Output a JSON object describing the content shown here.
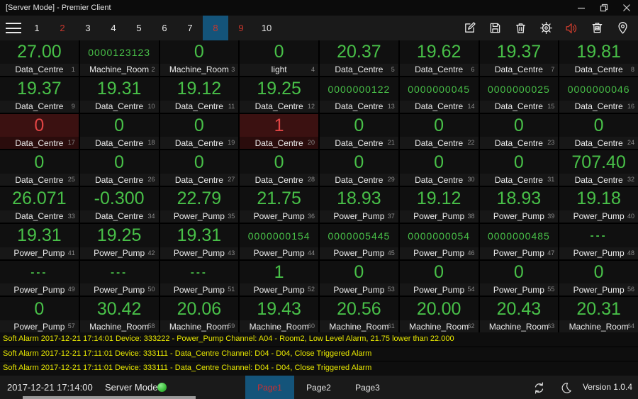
{
  "window": {
    "title": "[Server Mode] - Premier Client",
    "controls": [
      "minimize",
      "restore",
      "close"
    ]
  },
  "colors": {
    "accent_blue": "#14547a",
    "value_green": "#48c048",
    "alert_red": "#c8372d",
    "alarm_cell_bg": "#3b1111",
    "alarm_value_red": "#e04444",
    "alarm_text_yellow": "#e8e800"
  },
  "toolbar": {
    "pages": [
      {
        "label": "1"
      },
      {
        "label": "2",
        "alert": true
      },
      {
        "label": "3"
      },
      {
        "label": "4"
      },
      {
        "label": "5"
      },
      {
        "label": "6"
      },
      {
        "label": "7"
      },
      {
        "label": "8",
        "alert": true,
        "selected": true
      },
      {
        "label": "9",
        "alert": true
      },
      {
        "label": "10"
      }
    ],
    "icons": [
      "edit-icon",
      "save-icon",
      "delete-icon",
      "settings-icon",
      "sound-icon",
      "image-bin-icon",
      "location-icon"
    ]
  },
  "grid": {
    "cells": [
      {
        "index": 1,
        "value": "27.00",
        "label": "Data_Centre",
        "style": "big"
      },
      {
        "index": 2,
        "value": "0000123123",
        "label": "Machine_Room",
        "style": "counter"
      },
      {
        "index": 3,
        "value": "0",
        "label": "Machine_Room",
        "style": "big"
      },
      {
        "index": 4,
        "value": "0",
        "label": "light",
        "style": "big"
      },
      {
        "index": 5,
        "value": "20.37",
        "label": "Data_Centre",
        "style": "big"
      },
      {
        "index": 6,
        "value": "19.62",
        "label": "Data_Centre",
        "style": "big"
      },
      {
        "index": 7,
        "value": "19.37",
        "label": "Data_Centre",
        "style": "big"
      },
      {
        "index": 8,
        "value": "19.81",
        "label": "Data_Centre",
        "style": "big"
      },
      {
        "index": 9,
        "value": "19.37",
        "label": "Data_Centre",
        "style": "big"
      },
      {
        "index": 10,
        "value": "19.31",
        "label": "Data_Centre",
        "style": "big"
      },
      {
        "index": 11,
        "value": "19.12",
        "label": "Data_Centre",
        "style": "big"
      },
      {
        "index": 12,
        "value": "19.25",
        "label": "Data_Centre",
        "style": "big"
      },
      {
        "index": 13,
        "value": "0000000122",
        "label": "Data_Centre",
        "style": "counter"
      },
      {
        "index": 14,
        "value": "0000000045",
        "label": "Data_Centre",
        "style": "counter"
      },
      {
        "index": 15,
        "value": "0000000025",
        "label": "Data_Centre",
        "style": "counter"
      },
      {
        "index": 16,
        "value": "0000000046",
        "label": "Data_Centre",
        "style": "counter"
      },
      {
        "index": 17,
        "value": "0",
        "label": "Data_Centre",
        "style": "big",
        "alarm": true
      },
      {
        "index": 18,
        "value": "0",
        "label": "Data_Centre",
        "style": "big"
      },
      {
        "index": 19,
        "value": "0",
        "label": "Data_Centre",
        "style": "big"
      },
      {
        "index": 20,
        "value": "1",
        "label": "Data_Centre",
        "style": "big",
        "alarm": true
      },
      {
        "index": 21,
        "value": "0",
        "label": "Data_Centre",
        "style": "big"
      },
      {
        "index": 22,
        "value": "0",
        "label": "Data_Centre",
        "style": "big"
      },
      {
        "index": 23,
        "value": "0",
        "label": "Data_Centre",
        "style": "big"
      },
      {
        "index": 24,
        "value": "0",
        "label": "Data_Centre",
        "style": "big"
      },
      {
        "index": 25,
        "value": "0",
        "label": "Data_Centre",
        "style": "big"
      },
      {
        "index": 26,
        "value": "0",
        "label": "Data_Centre",
        "style": "big"
      },
      {
        "index": 27,
        "value": "0",
        "label": "Data_Centre",
        "style": "big"
      },
      {
        "index": 28,
        "value": "0",
        "label": "Data_Centre",
        "style": "big"
      },
      {
        "index": 29,
        "value": "0",
        "label": "Data_Centre",
        "style": "big"
      },
      {
        "index": 30,
        "value": "0",
        "label": "Data_Centre",
        "style": "big"
      },
      {
        "index": 31,
        "value": "0",
        "label": "Data_Centre",
        "style": "big"
      },
      {
        "index": 32,
        "value": "707.40",
        "label": "Data_Centre",
        "style": "big"
      },
      {
        "index": 33,
        "value": "26.071",
        "label": "Data_Centre",
        "style": "big"
      },
      {
        "index": 34,
        "value": "-0.300",
        "label": "Data_Centre",
        "style": "big"
      },
      {
        "index": 35,
        "value": "22.79",
        "label": "Power_Pump",
        "style": "big"
      },
      {
        "index": 36,
        "value": "21.75",
        "label": "Power_Pump",
        "style": "big"
      },
      {
        "index": 37,
        "value": "18.93",
        "label": "Power_Pump",
        "style": "big"
      },
      {
        "index": 38,
        "value": "19.12",
        "label": "Power_Pump",
        "style": "big"
      },
      {
        "index": 39,
        "value": "18.93",
        "label": "Power_Pump",
        "style": "big"
      },
      {
        "index": 40,
        "value": "19.18",
        "label": "Power_Pump",
        "style": "big"
      },
      {
        "index": 41,
        "value": "19.31",
        "label": "Power_Pump",
        "style": "big"
      },
      {
        "index": 42,
        "value": "19.25",
        "label": "Power_Pump",
        "style": "big"
      },
      {
        "index": 43,
        "value": "19.31",
        "label": "Power_Pump",
        "style": "big"
      },
      {
        "index": 44,
        "value": "0000000154",
        "label": "Power_Pump",
        "style": "counter"
      },
      {
        "index": 45,
        "value": "0000005445",
        "label": "Power_Pump",
        "style": "counter"
      },
      {
        "index": 46,
        "value": "0000000054",
        "label": "Power_Pump",
        "style": "counter"
      },
      {
        "index": 47,
        "value": "0000000485",
        "label": "Power_Pump",
        "style": "counter"
      },
      {
        "index": 48,
        "value": "---",
        "label": "Power_Pump",
        "style": "dash"
      },
      {
        "index": 49,
        "value": "---",
        "label": "Power_Pump",
        "style": "dash"
      },
      {
        "index": 50,
        "value": "---",
        "label": "Power_Pump",
        "style": "dash"
      },
      {
        "index": 51,
        "value": "---",
        "label": "Power_Pump",
        "style": "dash"
      },
      {
        "index": 52,
        "value": "1",
        "label": "Power_Pump",
        "style": "big"
      },
      {
        "index": 53,
        "value": "0",
        "label": "Power_Pump",
        "style": "big"
      },
      {
        "index": 54,
        "value": "0",
        "label": "Power_Pump",
        "style": "big"
      },
      {
        "index": 55,
        "value": "0",
        "label": "Power_Pump",
        "style": "big"
      },
      {
        "index": 56,
        "value": "0",
        "label": "Power_Pump",
        "style": "big"
      },
      {
        "index": 57,
        "value": "0",
        "label": "Power_Pump",
        "style": "big"
      },
      {
        "index": 58,
        "value": "30.42",
        "label": "Machine_Room",
        "style": "big"
      },
      {
        "index": 59,
        "value": "20.06",
        "label": "Machine_Room",
        "style": "big"
      },
      {
        "index": 60,
        "value": "19.43",
        "label": "Machine_Room",
        "style": "big"
      },
      {
        "index": 61,
        "value": "20.56",
        "label": "Machine_Room",
        "style": "big"
      },
      {
        "index": 62,
        "value": "20.00",
        "label": "Machine_Room",
        "style": "big"
      },
      {
        "index": 63,
        "value": "20.43",
        "label": "Machine_Room",
        "style": "big"
      },
      {
        "index": 64,
        "value": "20.31",
        "label": "Machine_Room",
        "style": "big"
      }
    ]
  },
  "alarms": [
    "Soft Alarm 2017-12-21 17:14:01 Device: 333222 - Power_Pump Channel: A04 - Room2, Low Level Alarm, 21.75 lower than 22.000",
    "Soft Alarm 2017-12-21 17:11:01 Device: 333111 - Data_Centre Channel: D04 - D04, Close Triggered Alarm",
    "Soft Alarm 2017-12-21 17:11:01 Device: 333111 - Data_Centre Channel: D04 - D04, Close Triggered Alarm"
  ],
  "footer": {
    "datetime": "2017-12-21 17:14:00",
    "mode": "Server Mode",
    "status": "online",
    "pages": [
      {
        "label": "Page1",
        "selected": true
      },
      {
        "label": "Page2"
      },
      {
        "label": "Page3"
      }
    ],
    "icons": [
      "sync-icon",
      "night-mode-icon"
    ],
    "version": "Version 1.0.4"
  }
}
